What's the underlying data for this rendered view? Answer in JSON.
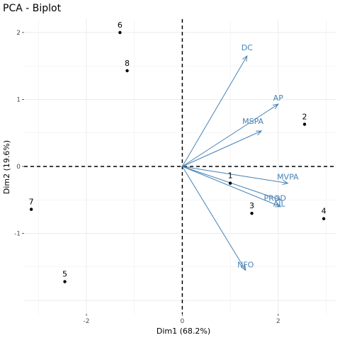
{
  "chart_data": {
    "type": "scatter",
    "title": "PCA - Biplot",
    "xlabel": "Dim1 (68.2%)",
    "ylabel": "Dim2 (19.6%)",
    "xlim": [
      -3.3,
      3.2
    ],
    "ylim": [
      -2.2,
      2.2
    ],
    "xticks": [
      -2,
      0,
      2
    ],
    "yticks": [
      -1,
      0,
      1,
      2
    ],
    "grid": true,
    "reference_lines": {
      "x": 0,
      "y": 0,
      "style": "dashed"
    },
    "points": [
      {
        "label": "1",
        "x": 1.0,
        "y": -0.25
      },
      {
        "label": "2",
        "x": 2.55,
        "y": 0.63
      },
      {
        "label": "3",
        "x": 1.45,
        "y": -0.7
      },
      {
        "label": "4",
        "x": 2.95,
        "y": -0.78
      },
      {
        "label": "5",
        "x": -2.45,
        "y": -1.72
      },
      {
        "label": "6",
        "x": -1.3,
        "y": 2.0
      },
      {
        "label": "7",
        "x": -3.15,
        "y": -0.64
      },
      {
        "label": "8",
        "x": -1.15,
        "y": 1.43
      }
    ],
    "variables": [
      {
        "name": "DC",
        "x": 1.35,
        "y": 1.65
      },
      {
        "name": "AP",
        "x": 2.0,
        "y": 0.93
      },
      {
        "name": "MSPA",
        "x": 1.65,
        "y": 0.53
      },
      {
        "name": "MVPA",
        "x": 2.2,
        "y": -0.25
      },
      {
        "name": "PROD",
        "x": 2.05,
        "y": -0.5
      },
      {
        "name": "AIL",
        "x": 2.05,
        "y": -0.6
      },
      {
        "name": "NFO",
        "x": 1.32,
        "y": -1.55
      }
    ],
    "colors": {
      "points": "#000000",
      "variables": "#4682B4",
      "grid": "#ebebeb",
      "refline": "#000000"
    }
  }
}
